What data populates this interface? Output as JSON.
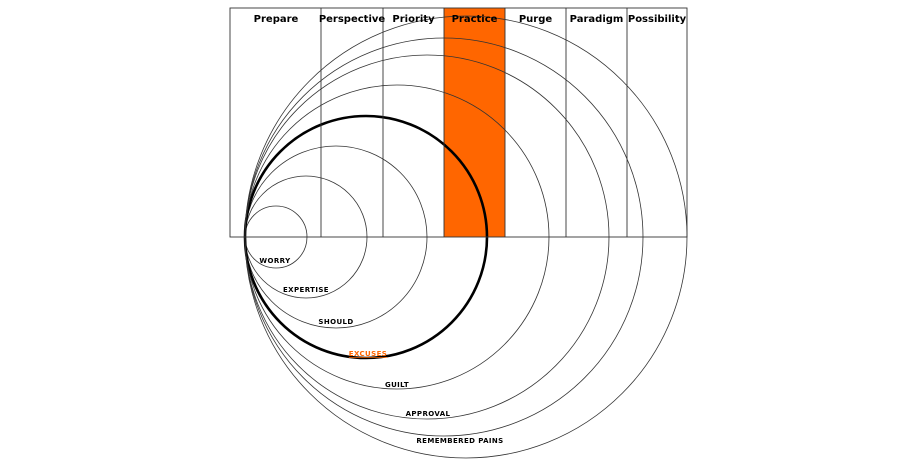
{
  "colors": {
    "accent": "#ff6600",
    "line": "#333333",
    "bold_line": "#000000",
    "background": "#ffffff"
  },
  "columns": [
    {
      "label": "Prepare",
      "highlighted": false
    },
    {
      "label": "Perspective",
      "highlighted": false
    },
    {
      "label": "Priority",
      "highlighted": false
    },
    {
      "label": "Practice",
      "highlighted": true
    },
    {
      "label": "Purge",
      "highlighted": false
    },
    {
      "label": "Paradigm",
      "highlighted": false
    },
    {
      "label": "Possibility",
      "highlighted": false
    }
  ],
  "rings": [
    {
      "label": "WORRY",
      "bold": false,
      "accent": false
    },
    {
      "label": "EXPERTISE",
      "bold": false,
      "accent": false
    },
    {
      "label": "SHOULD",
      "bold": false,
      "accent": false
    },
    {
      "label": "EXCUSES",
      "bold": true,
      "accent": true
    },
    {
      "label": "GUILT",
      "bold": false,
      "accent": false
    },
    {
      "label": "APPROVAL",
      "bold": false,
      "accent": false
    },
    {
      "label": "REMEMBERED PAINS",
      "bold": false,
      "accent": false
    }
  ]
}
